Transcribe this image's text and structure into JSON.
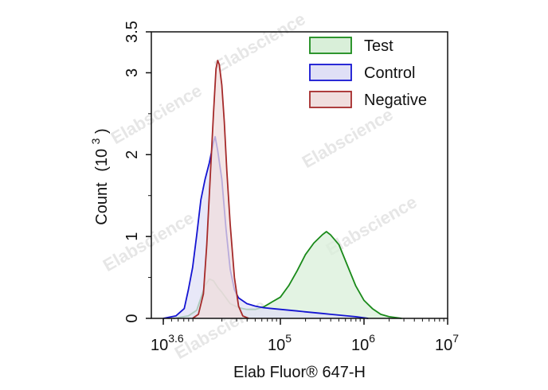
{
  "chart_data": {
    "type": "area",
    "title": "",
    "xlabel": "Elab Fluor® 647-H",
    "ylabel": "Count",
    "ylabel_unit_base": "(10",
    "ylabel_unit_exp": "3",
    "ylabel_unit_close": ")",
    "x_scale": "log10",
    "xlim": [
      3.6,
      7
    ],
    "ylim": [
      0,
      3.5
    ],
    "x_ticks": [
      {
        "base": "10",
        "exp": "3.6",
        "pos": 3.6
      },
      {
        "base": "10",
        "exp": "5",
        "pos": 5
      },
      {
        "base": "10",
        "exp": "6",
        "pos": 6
      },
      {
        "base": "10",
        "exp": "7",
        "pos": 7
      }
    ],
    "y_ticks": [
      {
        "label": "0",
        "value": 0
      },
      {
        "label": "1",
        "value": 1
      },
      {
        "label": "2",
        "value": 2
      },
      {
        "label": "3",
        "value": 3
      },
      {
        "label": "3.5",
        "value": 3.5
      }
    ],
    "legend_position": "top-right",
    "watermark": "Elabscience",
    "series": [
      {
        "name": "Test",
        "stroke": "#1a8a1a",
        "fill": "#d9efd9",
        "points": [
          [
            3.72,
            0
          ],
          [
            3.9,
            0.03
          ],
          [
            4.0,
            0.1
          ],
          [
            4.05,
            0.25
          ],
          [
            4.1,
            0.4
          ],
          [
            4.15,
            0.48
          ],
          [
            4.2,
            0.46
          ],
          [
            4.25,
            0.38
          ],
          [
            4.3,
            0.32
          ],
          [
            4.35,
            0.25
          ],
          [
            4.4,
            0.18
          ],
          [
            4.5,
            0.13
          ],
          [
            4.6,
            0.11
          ],
          [
            4.7,
            0.11
          ],
          [
            4.8,
            0.14
          ],
          [
            4.9,
            0.2
          ],
          [
            5.0,
            0.26
          ],
          [
            5.1,
            0.4
          ],
          [
            5.2,
            0.58
          ],
          [
            5.3,
            0.78
          ],
          [
            5.4,
            0.92
          ],
          [
            5.5,
            1.02
          ],
          [
            5.55,
            1.06
          ],
          [
            5.6,
            1.02
          ],
          [
            5.7,
            0.9
          ],
          [
            5.8,
            0.65
          ],
          [
            5.9,
            0.4
          ],
          [
            6.0,
            0.22
          ],
          [
            6.1,
            0.12
          ],
          [
            6.2,
            0.05
          ],
          [
            6.3,
            0.02
          ],
          [
            6.45,
            0
          ]
        ]
      },
      {
        "name": "Control",
        "stroke": "#1414d2",
        "fill": "#e0e0f6",
        "points": [
          [
            3.6,
            0
          ],
          [
            3.75,
            0.03
          ],
          [
            3.85,
            0.12
          ],
          [
            3.9,
            0.35
          ],
          [
            3.95,
            0.62
          ],
          [
            4.0,
            1.02
          ],
          [
            4.05,
            1.45
          ],
          [
            4.1,
            1.7
          ],
          [
            4.15,
            1.9
          ],
          [
            4.2,
            2.15
          ],
          [
            4.22,
            2.22
          ],
          [
            4.25,
            2.05
          ],
          [
            4.3,
            1.7
          ],
          [
            4.35,
            1.1
          ],
          [
            4.4,
            0.6
          ],
          [
            4.45,
            0.35
          ],
          [
            4.5,
            0.25
          ],
          [
            4.6,
            0.18
          ],
          [
            4.7,
            0.15
          ],
          [
            4.8,
            0.13
          ],
          [
            4.9,
            0.12
          ],
          [
            5.0,
            0.11
          ],
          [
            5.1,
            0.1
          ],
          [
            5.2,
            0.09
          ],
          [
            5.3,
            0.08
          ],
          [
            5.4,
            0.07
          ],
          [
            5.5,
            0.06
          ],
          [
            5.6,
            0.05
          ],
          [
            5.7,
            0.04
          ],
          [
            5.8,
            0.03
          ],
          [
            5.9,
            0.02
          ],
          [
            6.05,
            0
          ]
        ]
      },
      {
        "name": "Negative",
        "stroke": "#a52a2a",
        "fill": "#f0dede",
        "points": [
          [
            3.95,
            0
          ],
          [
            4.02,
            0.05
          ],
          [
            4.08,
            0.3
          ],
          [
            4.12,
            0.9
          ],
          [
            4.16,
            1.7
          ],
          [
            4.2,
            2.5
          ],
          [
            4.23,
            3.05
          ],
          [
            4.25,
            3.15
          ],
          [
            4.27,
            3.1
          ],
          [
            4.3,
            2.85
          ],
          [
            4.33,
            2.4
          ],
          [
            4.36,
            1.8
          ],
          [
            4.4,
            1.15
          ],
          [
            4.45,
            0.5
          ],
          [
            4.5,
            0.15
          ],
          [
            4.55,
            0.03
          ],
          [
            4.62,
            0
          ]
        ]
      }
    ]
  }
}
